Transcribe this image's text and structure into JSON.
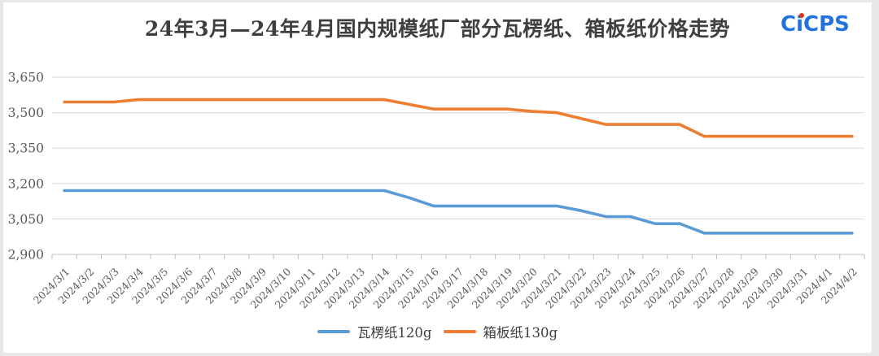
{
  "page": {
    "background": "#e7e7e7",
    "card_background": "#ffffff"
  },
  "header": {
    "title": "24年3月—24年4月国内规模纸厂部分瓦楞纸、箱板纸价格走势",
    "logo": {
      "text": "CiCPS",
      "color": "#2273dd",
      "dot_color": "#e0301e"
    }
  },
  "chart_data": {
    "type": "line",
    "title": "24年3月—24年4月国内规模纸厂部分瓦楞纸、箱板纸价格走势",
    "categories": [
      "2024/3/1",
      "2024/3/2",
      "2024/3/3",
      "2024/3/4",
      "2024/3/5",
      "2024/3/6",
      "2024/3/7",
      "2024/3/8",
      "2024/3/9",
      "2024/3/10",
      "2024/3/11",
      "2024/3/12",
      "2024/3/13",
      "2024/3/14",
      "2024/3/15",
      "2024/3/16",
      "2024/3/17",
      "2024/3/18",
      "2024/3/19",
      "2024/3/20",
      "2024/3/21",
      "2024/3/22",
      "2024/3/23",
      "2024/3/24",
      "2024/3/25",
      "2024/3/26",
      "2024/3/27",
      "2024/3/28",
      "2024/3/29",
      "2024/3/30",
      "2024/3/31",
      "2024/4/1",
      "2024/4/2"
    ],
    "series": [
      {
        "name": "瓦楞纸120g",
        "color": "#5B9BD5",
        "values": [
          3170,
          3170,
          3170,
          3170,
          3170,
          3170,
          3170,
          3170,
          3170,
          3170,
          3170,
          3170,
          3170,
          3170,
          3140,
          3105,
          3105,
          3105,
          3105,
          3105,
          3105,
          3085,
          3060,
          3060,
          3030,
          3030,
          2990,
          2990,
          2990,
          2990,
          2990,
          2990,
          2990
        ]
      },
      {
        "name": "箱板纸130g",
        "color": "#ED7D31",
        "values": [
          3545,
          3545,
          3545,
          3555,
          3555,
          3555,
          3555,
          3555,
          3555,
          3555,
          3555,
          3555,
          3555,
          3555,
          3535,
          3515,
          3515,
          3515,
          3515,
          3505,
          3500,
          3475,
          3450,
          3450,
          3450,
          3450,
          3400,
          3400,
          3400,
          3400,
          3400,
          3400,
          3400
        ]
      }
    ],
    "ylim": [
      2900,
      3650
    ],
    "ytick_step": 150,
    "ytick_labels": [
      "2,900",
      "3,050",
      "3,200",
      "3,350",
      "3,500",
      "3,650"
    ],
    "xlabel": "",
    "ylabel": "",
    "grid": "horizontal-only",
    "gridline_color": "#d9d9d9",
    "axis_color": "#bfbfbf",
    "tick_label_color": "#595959",
    "legend_position": "bottom"
  }
}
